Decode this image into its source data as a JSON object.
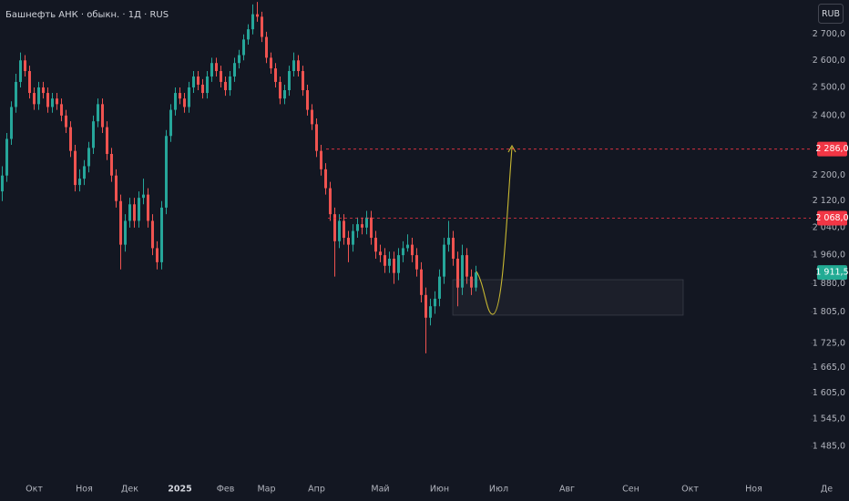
{
  "chart_data": {
    "type": "candlestick",
    "title": "Башнефть АНК · обыкн. · 1Д · RUS",
    "currency": "RUB",
    "log_scale": true,
    "grid": false,
    "up_color": "#26a69a",
    "down_color": "#ef5350",
    "ylim": [
      1437,
      2838
    ],
    "yticks": [
      {
        "value": 2700,
        "label": "2 700,0"
      },
      {
        "value": 2600,
        "label": "2 600,0"
      },
      {
        "value": 2500,
        "label": "2 500,0"
      },
      {
        "value": 2400,
        "label": "2 400,0"
      },
      {
        "value": 2200,
        "label": "2 200,0"
      },
      {
        "value": 2120,
        "label": "2 120,0"
      },
      {
        "value": 2040,
        "label": "2 040,0"
      },
      {
        "value": 1960,
        "label": "1 960,0"
      },
      {
        "value": 1880,
        "label": "1 880,0"
      },
      {
        "value": 1805,
        "label": "1 805,0"
      },
      {
        "value": 1725,
        "label": "1 725,0"
      },
      {
        "value": 1665,
        "label": "1 665,0"
      },
      {
        "value": 1605,
        "label": "1 605,0"
      },
      {
        "value": 1545,
        "label": "1 545,0"
      },
      {
        "value": 1485,
        "label": "1 485,0"
      }
    ],
    "levels": [
      {
        "value": 2286,
        "label": "2 286,0",
        "color": "#f23645"
      },
      {
        "value": 2068,
        "label": "2 068,0",
        "color": "#f23645"
      }
    ],
    "last_price": {
      "value": 1911.5,
      "label": "1 911,5",
      "color": "#22ab94"
    },
    "categories": [
      null,
      null,
      null,
      null,
      null,
      null,
      null,
      "Окт",
      null,
      null,
      null,
      null,
      null,
      null,
      null,
      null,
      null,
      null,
      "Ноя",
      null,
      null,
      null,
      null,
      null,
      null,
      null,
      null,
      null,
      "Дек",
      null,
      null,
      null,
      null,
      null,
      null,
      null,
      null,
      null,
      null,
      "2025",
      null,
      null,
      null,
      null,
      null,
      null,
      null,
      null,
      null,
      "Фев",
      null,
      null,
      null,
      null,
      null,
      null,
      null,
      null,
      "Мар",
      null,
      null,
      null,
      null,
      null,
      null,
      null,
      null,
      null,
      null,
      "Апр",
      null,
      null,
      null,
      null,
      null,
      null,
      null,
      null,
      null,
      null,
      null,
      null,
      null,
      "Май",
      null,
      null,
      null,
      null,
      null,
      null,
      null,
      null,
      null,
      null,
      null,
      null,
      "Июн",
      null,
      null,
      null,
      null,
      null,
      null,
      null,
      null,
      null,
      null,
      null,
      null,
      "Июл",
      null,
      null,
      null,
      null,
      null,
      null,
      null,
      null,
      null,
      null,
      null,
      null,
      null,
      null,
      "Авг",
      null,
      null,
      null,
      null,
      null,
      null,
      null,
      null,
      null,
      null,
      null,
      null,
      null,
      "Сен",
      null,
      null,
      null,
      null,
      null,
      null,
      null,
      null,
      null,
      null,
      null,
      null,
      "Окт",
      null,
      null,
      null,
      null,
      null,
      null,
      null,
      null,
      null,
      null,
      null,
      null,
      null,
      "Ноя",
      null,
      null,
      null,
      null,
      null,
      null,
      null,
      null,
      null,
      null,
      null,
      null,
      null,
      null,
      null,
      "Де"
    ],
    "ohlc": [
      [
        2150,
        2230,
        2120,
        2200
      ],
      [
        2200,
        2340,
        2180,
        2320
      ],
      [
        2320,
        2450,
        2300,
        2430
      ],
      [
        2430,
        2550,
        2410,
        2520
      ],
      [
        2520,
        2630,
        2500,
        2600
      ],
      [
        2600,
        2620,
        2540,
        2560
      ],
      [
        2560,
        2580,
        2460,
        2480
      ],
      [
        2480,
        2500,
        2420,
        2440
      ],
      [
        2440,
        2520,
        2420,
        2500
      ],
      [
        2500,
        2520,
        2460,
        2480
      ],
      [
        2480,
        2500,
        2410,
        2430
      ],
      [
        2430,
        2480,
        2410,
        2460
      ],
      [
        2460,
        2480,
        2420,
        2440
      ],
      [
        2440,
        2460,
        2380,
        2400
      ],
      [
        2400,
        2420,
        2340,
        2360
      ],
      [
        2360,
        2380,
        2260,
        2280
      ],
      [
        2280,
        2300,
        2150,
        2170
      ],
      [
        2170,
        2220,
        2150,
        2190
      ],
      [
        2190,
        2250,
        2170,
        2230
      ],
      [
        2230,
        2310,
        2210,
        2290
      ],
      [
        2290,
        2400,
        2270,
        2380
      ],
      [
        2380,
        2460,
        2360,
        2440
      ],
      [
        2440,
        2460,
        2340,
        2360
      ],
      [
        2360,
        2380,
        2250,
        2270
      ],
      [
        2270,
        2290,
        2180,
        2200
      ],
      [
        2200,
        2220,
        2100,
        2120
      ],
      [
        2120,
        2140,
        1920,
        1990
      ],
      [
        1990,
        2080,
        1970,
        2060
      ],
      [
        2060,
        2130,
        2040,
        2110
      ],
      [
        2110,
        2130,
        2040,
        2060
      ],
      [
        2060,
        2150,
        2040,
        2130
      ],
      [
        2130,
        2190,
        2110,
        2140
      ],
      [
        2140,
        2160,
        2040,
        2060
      ],
      [
        2060,
        2080,
        1960,
        1980
      ],
      [
        1980,
        2000,
        1920,
        1940
      ],
      [
        1940,
        2120,
        1920,
        2100
      ],
      [
        2100,
        2350,
        2080,
        2330
      ],
      [
        2330,
        2440,
        2310,
        2420
      ],
      [
        2420,
        2500,
        2400,
        2480
      ],
      [
        2480,
        2500,
        2440,
        2460
      ],
      [
        2460,
        2480,
        2410,
        2430
      ],
      [
        2430,
        2520,
        2410,
        2500
      ],
      [
        2500,
        2560,
        2480,
        2540
      ],
      [
        2540,
        2560,
        2490,
        2510
      ],
      [
        2510,
        2530,
        2460,
        2480
      ],
      [
        2480,
        2560,
        2460,
        2540
      ],
      [
        2540,
        2610,
        2520,
        2590
      ],
      [
        2590,
        2610,
        2540,
        2560
      ],
      [
        2560,
        2580,
        2500,
        2520
      ],
      [
        2520,
        2540,
        2470,
        2490
      ],
      [
        2490,
        2560,
        2470,
        2540
      ],
      [
        2540,
        2610,
        2520,
        2590
      ],
      [
        2590,
        2640,
        2570,
        2620
      ],
      [
        2620,
        2700,
        2600,
        2680
      ],
      [
        2680,
        2740,
        2660,
        2720
      ],
      [
        2720,
        2820,
        2700,
        2780
      ],
      [
        2780,
        2830,
        2750,
        2770
      ],
      [
        2770,
        2790,
        2670,
        2690
      ],
      [
        2690,
        2710,
        2590,
        2610
      ],
      [
        2610,
        2630,
        2550,
        2570
      ],
      [
        2570,
        2590,
        2500,
        2520
      ],
      [
        2520,
        2540,
        2440,
        2460
      ],
      [
        2460,
        2510,
        2440,
        2490
      ],
      [
        2490,
        2580,
        2470,
        2560
      ],
      [
        2560,
        2630,
        2540,
        2600
      ],
      [
        2600,
        2620,
        2540,
        2560
      ],
      [
        2560,
        2580,
        2470,
        2490
      ],
      [
        2490,
        2510,
        2400,
        2420
      ],
      [
        2420,
        2440,
        2350,
        2370
      ],
      [
        2370,
        2390,
        2260,
        2280
      ],
      [
        2280,
        2300,
        2200,
        2220
      ],
      [
        2220,
        2240,
        2140,
        2160
      ],
      [
        2160,
        2180,
        2060,
        2080
      ],
      [
        2080,
        2100,
        1900,
        2000
      ],
      [
        2000,
        2080,
        1980,
        2060
      ],
      [
        2060,
        2080,
        1990,
        2010
      ],
      [
        2010,
        2030,
        1940,
        1990
      ],
      [
        1990,
        2050,
        1970,
        2030
      ],
      [
        2030,
        2070,
        2010,
        2050
      ],
      [
        2050,
        2070,
        2020,
        2040
      ],
      [
        2040,
        2090,
        2020,
        2070
      ],
      [
        2070,
        2090,
        1990,
        2010
      ],
      [
        2010,
        2030,
        1950,
        1970
      ],
      [
        1970,
        1990,
        1940,
        1960
      ],
      [
        1960,
        1980,
        1910,
        1930
      ],
      [
        1930,
        1970,
        1910,
        1950
      ],
      [
        1950,
        1970,
        1880,
        1910
      ],
      [
        1910,
        1980,
        1890,
        1960
      ],
      [
        1960,
        2000,
        1940,
        1980
      ],
      [
        1980,
        2020,
        1970,
        1990
      ],
      [
        1990,
        2010,
        1940,
        1960
      ],
      [
        1960,
        1980,
        1900,
        1920
      ],
      [
        1920,
        1940,
        1830,
        1850
      ],
      [
        1850,
        1870,
        1700,
        1790
      ],
      [
        1790,
        1840,
        1770,
        1820
      ],
      [
        1820,
        1860,
        1800,
        1840
      ],
      [
        1840,
        1920,
        1820,
        1900
      ],
      [
        1900,
        2010,
        1880,
        1990
      ],
      [
        1990,
        2060,
        1970,
        2010
      ],
      [
        2010,
        2030,
        1930,
        1950
      ],
      [
        1950,
        1970,
        1820,
        1870
      ],
      [
        1870,
        1990,
        1850,
        1960
      ],
      [
        1960,
        1980,
        1880,
        1900
      ],
      [
        1900,
        1920,
        1850,
        1870
      ],
      [
        1870,
        1930,
        1860,
        1911.5
      ],
      null,
      null,
      null,
      null,
      null,
      null,
      null,
      null,
      null,
      null,
      null,
      null,
      null,
      null,
      null,
      null,
      null,
      null,
      null,
      null,
      null,
      null,
      null,
      null,
      null,
      null,
      null,
      null,
      null,
      null,
      null,
      null,
      null,
      null,
      null,
      null,
      null,
      null,
      null,
      null,
      null,
      null,
      null,
      null,
      null,
      null,
      null,
      null,
      null,
      null,
      null,
      null,
      null,
      null,
      null,
      null,
      null,
      null,
      null,
      null,
      null,
      null,
      null,
      null,
      null,
      null,
      null,
      null,
      null,
      null,
      null,
      null,
      null,
      null,
      null,
      null,
      null
    ]
  }
}
